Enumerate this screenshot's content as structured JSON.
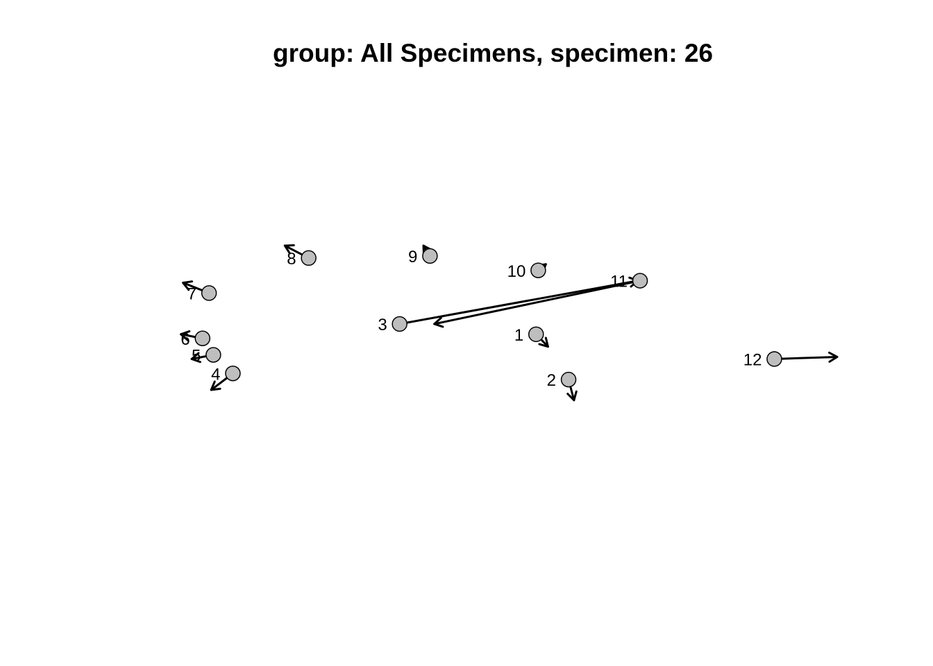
{
  "chart_data": {
    "type": "scatter",
    "title": "group: All Specimens, specimen: 26",
    "xlabel": "",
    "ylabel": "",
    "axes_shown": false,
    "grid": false,
    "point_fill": "#bebebe",
    "point_stroke": "#000000",
    "arrow_color": "#000000",
    "landmarks": [
      {
        "id": "1",
        "x": 0.52,
        "y": -0.06,
        "dx": 0.055,
        "dy": -0.06
      },
      {
        "id": "2",
        "x": 0.67,
        "y": -0.28,
        "dx": 0.025,
        "dy": -0.1
      },
      {
        "id": "3",
        "x": -0.11,
        "y": -0.01,
        "dx": 1.1,
        "dy": 0.21
      },
      {
        "id": "4",
        "x": -0.88,
        "y": -0.25,
        "dx": -0.1,
        "dy": -0.08
      },
      {
        "id": "5",
        "x": -0.97,
        "y": -0.16,
        "dx": -0.1,
        "dy": -0.02
      },
      {
        "id": "6",
        "x": -1.02,
        "y": -0.08,
        "dx": -0.1,
        "dy": 0.02
      },
      {
        "id": "7",
        "x": -0.99,
        "y": 0.14,
        "dx": -0.12,
        "dy": 0.05
      },
      {
        "id": "8",
        "x": -0.53,
        "y": 0.31,
        "dx": -0.11,
        "dy": 0.06
      },
      {
        "id": "9",
        "x": 0.03,
        "y": 0.32,
        "dx": -0.03,
        "dy": 0.05
      },
      {
        "id": "10",
        "x": 0.53,
        "y": 0.25,
        "dx": 0.035,
        "dy": 0.03
      },
      {
        "id": "11",
        "x": 1.0,
        "y": 0.2,
        "dx": -0.95,
        "dy": -0.21
      },
      {
        "id": "12",
        "x": 1.62,
        "y": -0.18,
        "dx": 0.29,
        "dy": 0.01
      }
    ]
  }
}
